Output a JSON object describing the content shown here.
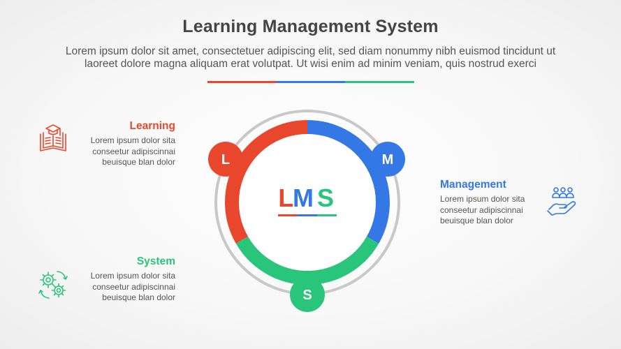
{
  "header": {
    "title": "Learning Management System",
    "subtitle_line1": "Lorem ipsum dolor sit amet, consectetuer adipiscing elit, sed diam nonummy nibh euismod tincidunt ut",
    "subtitle_line2": "laoreet dolore magna aliquam erat volutpat. Ut wisi enim ad minim veniam, quis nostrud exerci"
  },
  "colors": {
    "red": "#e9472d",
    "blue": "#3478e6",
    "green": "#29c57a",
    "ring": "#c8c8c8"
  },
  "center": {
    "letter_l": "L",
    "letter_m": "M",
    "letter_s": "S"
  },
  "badges": {
    "l": "L",
    "m": "M",
    "s": "S"
  },
  "items": {
    "learning": {
      "title": "Learning",
      "line1": "Lorem ipsum dolor sita",
      "line2": "conseetur adipiscinnai",
      "line3": "beuisque blan dolor",
      "icon": "graduation-book-icon"
    },
    "management": {
      "title": "Management",
      "line1": "Lorem ipsum dolor sita",
      "line2": "conseetur adipiscinnai",
      "line3": "beuisque blan dolor",
      "icon": "team-hand-icon"
    },
    "system": {
      "title": "System",
      "line1": "Lorem ipsum dolor sita",
      "line2": "conseetur adipiscinnai",
      "line3": "beuisque blan dolor",
      "icon": "gears-cycle-icon"
    }
  }
}
